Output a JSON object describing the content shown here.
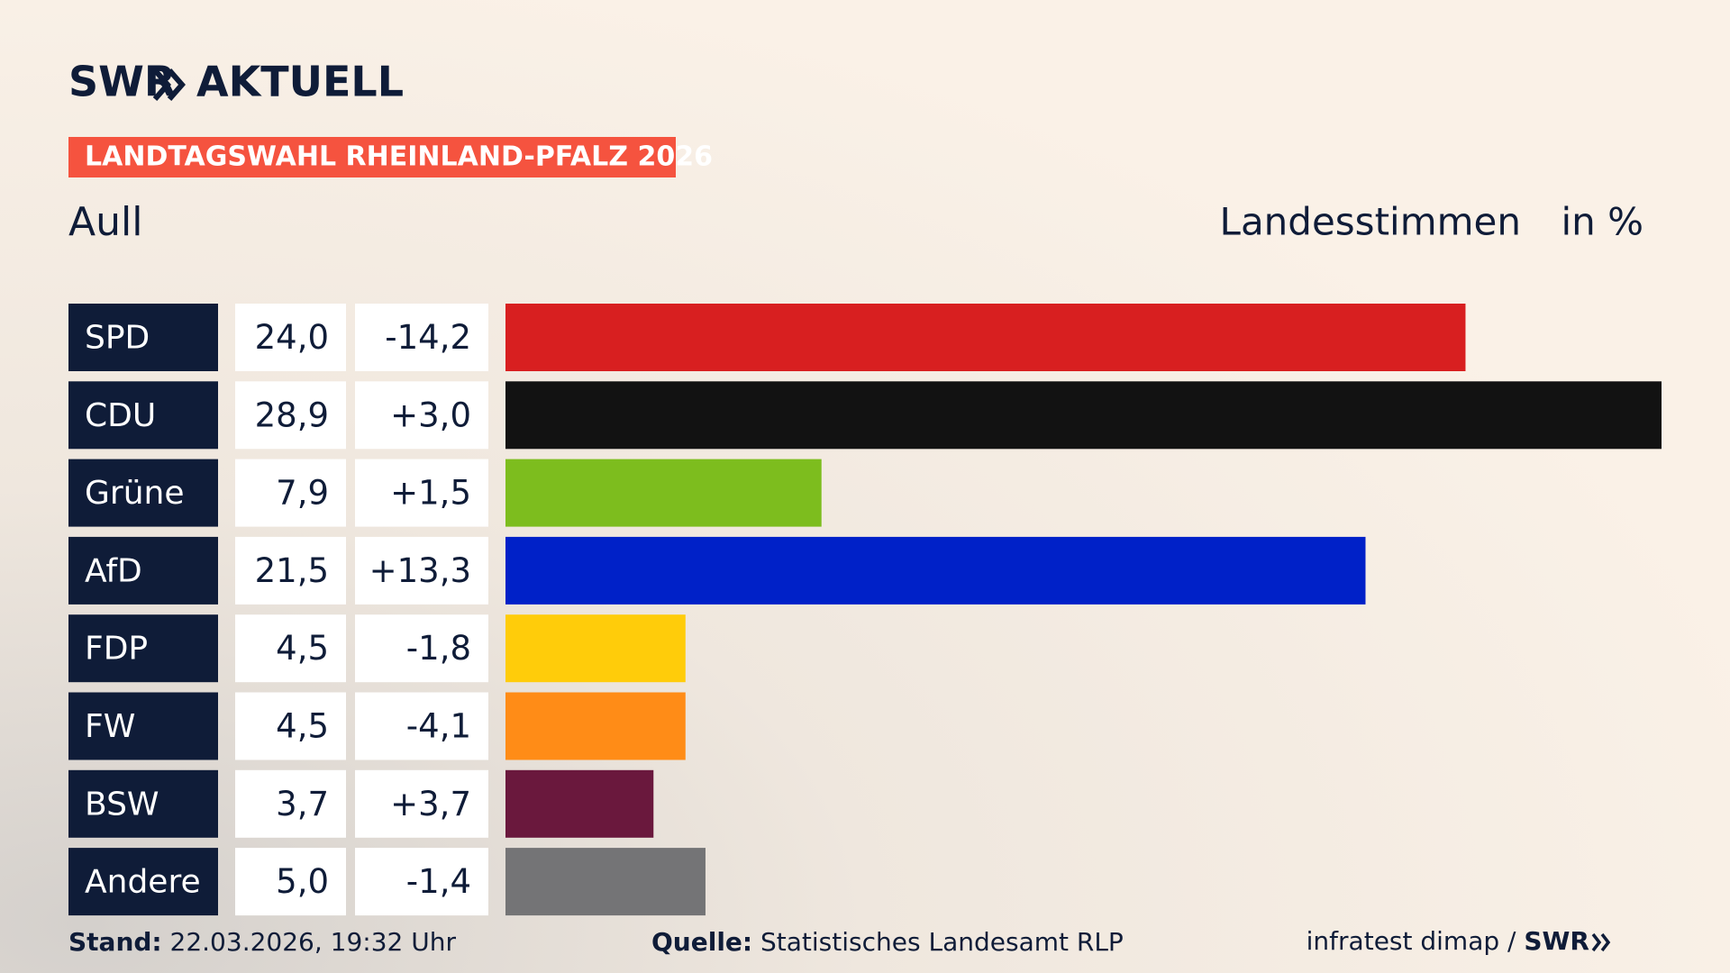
{
  "chart_data": {
    "type": "bar",
    "brand": [
      "SWR",
      "AKTUELL"
    ],
    "title": "LANDTAGSWAHL RHEINLAND-PFALZ 2026",
    "subtitle": "Aull",
    "value_axis_label": "Landesstimmen",
    "unit": "in %",
    "categories": [
      "SPD",
      "CDU",
      "Grüne",
      "AfD",
      "FDP",
      "FW",
      "BSW",
      "Andere"
    ],
    "values": [
      24.0,
      28.9,
      7.9,
      21.5,
      4.5,
      4.5,
      3.7,
      5.0
    ],
    "value_labels": [
      "24,0",
      "28,9",
      "7,9",
      "21,5",
      "4,5",
      "4,5",
      "3,7",
      "5,0"
    ],
    "changes": [
      -14.2,
      3.0,
      1.5,
      13.3,
      -1.8,
      -4.1,
      3.7,
      -1.4
    ],
    "change_labels": [
      "-14,2",
      "+3,0",
      "+1,5",
      "+13,3",
      "-1,8",
      "-4,1",
      "+3,7",
      "-1,4"
    ],
    "colors": [
      "#d81f20",
      "#121212",
      "#7dbd1e",
      "#0021c8",
      "#ffcc0a",
      "#ff8c17",
      "#6a183d",
      "#747476"
    ],
    "footer": {
      "stand_label": "Stand:",
      "stand": "22.03.2026, 19:32 Uhr",
      "source_label": "Quelle:",
      "source": "Statistisches Landesamt RLP",
      "credit": "infratest dimap / ",
      "credit_brand": "SWR"
    }
  }
}
